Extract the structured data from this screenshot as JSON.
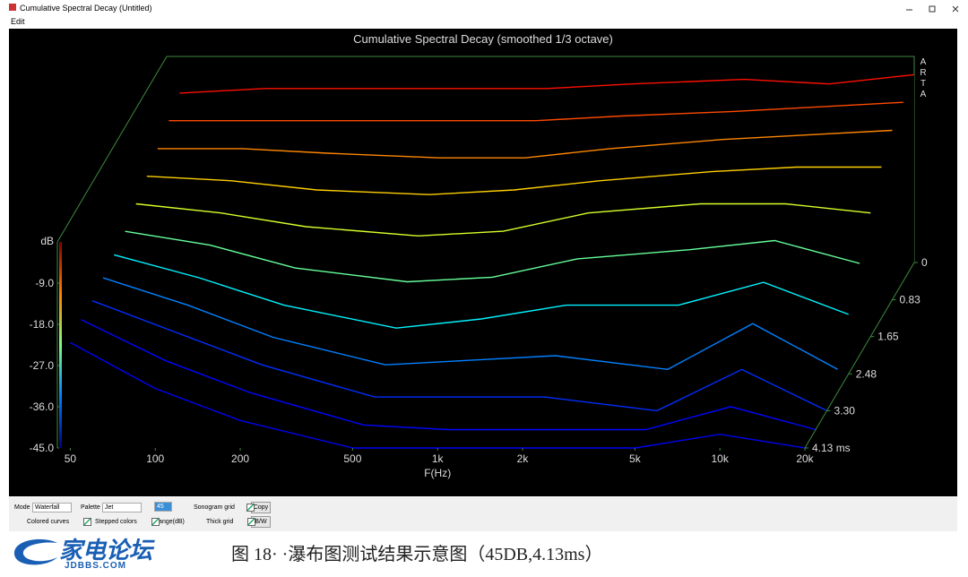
{
  "window": {
    "title": "Cumulative Spectral Decay  (Untitled)",
    "menu": [
      "Edit"
    ]
  },
  "chart_data": {
    "type": "waterfall",
    "title": "Cumulative Spectral Decay (smoothed 1/3 octave)",
    "brand": [
      "A",
      "R",
      "T",
      "A"
    ],
    "x_label": "F(Hz)",
    "y_label": "dB",
    "xscale": "log",
    "palette": "jet",
    "x": [
      50,
      100,
      200,
      500,
      1000,
      2000,
      5000,
      10000,
      20000
    ],
    "xlim": [
      45,
      20000
    ],
    "xticks": [
      50,
      100,
      200,
      500,
      {
        "value": 1000,
        "label": "1k"
      },
      {
        "value": 2000,
        "label": "2k"
      },
      {
        "value": 5000,
        "label": "5k"
      },
      {
        "value": 10000,
        "label": "10k"
      },
      {
        "value": 20000,
        "label": "20k"
      }
    ],
    "ylim": [
      -45,
      0
    ],
    "yticks": [
      {
        "value": -45,
        "label": "-45.0"
      },
      {
        "value": -36,
        "label": "-36.0"
      },
      {
        "value": -27,
        "label": "-27.0"
      },
      {
        "value": -18,
        "label": "-18.0"
      },
      {
        "value": -9,
        "label": "-9.0"
      }
    ],
    "zlim": [
      0,
      4.13
    ],
    "zticks": [
      0,
      0.83,
      1.65,
      2.48,
      {
        "value": 3.3,
        "label": "3.30"
      },
      {
        "value": 4.13,
        "label": "4.13 ms"
      }
    ],
    "slices": [
      {
        "time": 0,
        "values": [
          -8,
          -7,
          -7,
          -7,
          -7,
          -6,
          -5,
          -6,
          -4
        ]
      },
      {
        "time": 0.41,
        "values": [
          -10,
          -10,
          -10,
          -10,
          -10,
          -9,
          -8,
          -7,
          -6
        ]
      },
      {
        "time": 0.83,
        "values": [
          -12,
          -12,
          -13,
          -14,
          -14,
          -12,
          -10,
          -9,
          -8
        ]
      },
      {
        "time": 1.24,
        "values": [
          -14,
          -15,
          -17,
          -18,
          -17,
          -15,
          -13,
          -12,
          -12
        ]
      },
      {
        "time": 1.65,
        "values": [
          -16,
          -18,
          -21,
          -23,
          -22,
          -18,
          -16,
          -16,
          -18
        ]
      },
      {
        "time": 2.06,
        "values": [
          -18,
          -21,
          -26,
          -29,
          -28,
          -24,
          -22,
          -20,
          -25
        ]
      },
      {
        "time": 2.48,
        "values": [
          -19,
          -24,
          -30,
          -35,
          -33,
          -30,
          -30,
          -25,
          -32
        ]
      },
      {
        "time": 2.89,
        "values": [
          -20,
          -26,
          -33,
          -39,
          -38,
          -37,
          -40,
          -30,
          -40
        ]
      },
      {
        "time": 3.3,
        "values": [
          -21,
          -28,
          -35,
          -42,
          -42,
          -42,
          -45,
          -36,
          -45
        ]
      },
      {
        "time": 3.72,
        "values": [
          -21,
          -30,
          -37,
          -44,
          -45,
          -45,
          -45,
          -40,
          -45
        ]
      },
      {
        "time": 4.13,
        "values": [
          -22,
          -32,
          -39,
          -45,
          -45,
          -45,
          -45,
          -42,
          -45
        ]
      }
    ]
  },
  "controls": {
    "mode_label": "Mode",
    "mode": "Waterfall",
    "palette_label": "Palette",
    "palette": "Jet",
    "range": "45",
    "range_label": "Range(dB)",
    "checkboxes": [
      {
        "label": "Sonogram grid",
        "checked": true
      },
      {
        "label": "Colored curves",
        "checked": true
      },
      {
        "label": "Stepped colors",
        "checked": true
      },
      {
        "label": "Thick grid",
        "checked": true
      }
    ],
    "buttons": [
      "Copy",
      "B/W"
    ]
  },
  "footer": {
    "logo": "家电论坛",
    "logo_sub": "JDBBS.COM",
    "caption": "图 18· ·瀑布图测试结果示意图（45DB,4.13ms）"
  }
}
